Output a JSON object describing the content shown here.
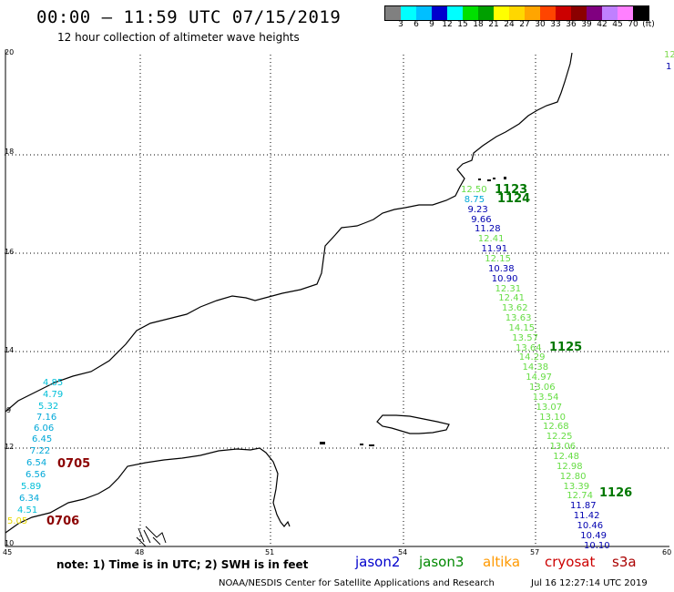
{
  "header": {
    "title": "00:00 – 11:59 UTC 07/15/2019",
    "subtitle": "12 hour collection of altimeter wave heights"
  },
  "legend": {
    "swatches": [
      "#808080",
      "#00ffff",
      "#00bfff",
      "#0000cd",
      "#00ffff",
      "#00e000",
      "#00a000",
      "#ffff00",
      "#ffd700",
      "#ffa500",
      "#ff4500",
      "#cc0000",
      "#8b0000",
      "#800080",
      "#c080ff",
      "#ff80ff",
      "#000000"
    ],
    "values": [
      "3",
      "6",
      "9",
      "12",
      "15",
      "18",
      "21",
      "24",
      "27",
      "30",
      "33",
      "36",
      "39",
      "42",
      "45",
      "70"
    ],
    "unit": "(ft)"
  },
  "axes": {
    "y_ticks": [
      "20",
      "18",
      "16",
      "14",
      "12",
      "10"
    ],
    "x_ticks": [
      "45",
      "48",
      "51",
      "54",
      "57",
      "60"
    ],
    "y_side_mark": "9"
  },
  "labels": {
    "time_0705": "0705",
    "time_0706": "0706",
    "time_1123": "1123",
    "time_1124": "1124",
    "time_1125": "1125",
    "time_1126": "1126"
  },
  "readings_west": [
    "4.85",
    "4.79",
    "5.32",
    "7.16",
    "6.06",
    "6.45",
    "7.22",
    "6.54",
    "6.56",
    "5.89",
    "6.34",
    "4.51",
    "5.05"
  ],
  "readings_east": [
    "12.50",
    "8.75",
    "9.23",
    "9.66",
    "11.28",
    "12.41",
    "11.91",
    "12.15",
    "10.38",
    "10.90",
    "12.31",
    "12.41",
    "13.62",
    "13.63",
    "14.15",
    "13.57",
    "13.64",
    "14.29",
    "14.38",
    "14.97",
    "13.06",
    "13.54",
    "13.07",
    "13.10",
    "12.68",
    "12.25",
    "13.06",
    "12.48",
    "12.98",
    "12.80",
    "13.39",
    "12.74",
    "11.87",
    "11.42",
    "10.46",
    "10.49",
    "10.10"
  ],
  "edge_reading": "12",
  "edge_reading_2": "1",
  "footer": {
    "note": "note: 1) Time is in UTC; 2) SWH is in feet",
    "satellites": [
      "jason2",
      "jason3",
      "altika",
      "cryosat",
      "s3a"
    ],
    "sat_colors": [
      "#0000cc",
      "#008800",
      "#ff9900",
      "#cc0000",
      "#aa0000"
    ],
    "credit": "NOAA/NESDIS Center for Satellite Applications and Research",
    "stamp": "Jul 16 12:27:14 UTC 2019"
  }
}
